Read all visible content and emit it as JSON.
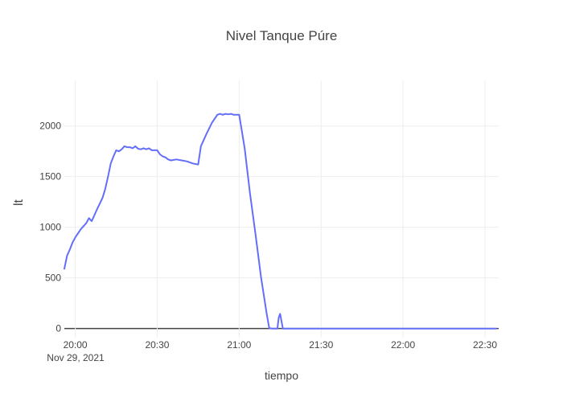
{
  "chart_data": {
    "type": "line",
    "title": "Nivel Tanque Púre",
    "xlabel": "tiempo",
    "ylabel": "lt",
    "x_date_label": "Nov 29, 2021",
    "x_tick_labels": [
      "20:00",
      "20:30",
      "21:00",
      "21:30",
      "22:00",
      "22:30"
    ],
    "y_tick_labels": [
      "0",
      "500",
      "1000",
      "1500",
      "2000"
    ],
    "y_ticks": [
      0,
      500,
      1000,
      1500,
      2000
    ],
    "xlim": [
      "2021-11-29 19:56",
      "2021-11-29 22:35"
    ],
    "ylim": [
      -90,
      2450
    ],
    "grid": true,
    "series_color": "#636efa",
    "series": [
      {
        "x": [
          "2021-11-29 19:56",
          "2021-11-29 19:57",
          "2021-11-29 19:58",
          "2021-11-29 19:59",
          "2021-11-29 20:00",
          "2021-11-29 20:02",
          "2021-11-29 20:04",
          "2021-11-29 20:05",
          "2021-11-29 20:06",
          "2021-11-29 20:08",
          "2021-11-29 20:10",
          "2021-11-29 20:11",
          "2021-11-29 20:12",
          "2021-11-29 20:13",
          "2021-11-29 20:14",
          "2021-11-29 20:15",
          "2021-11-29 20:16",
          "2021-11-29 20:17",
          "2021-11-29 20:18",
          "2021-11-29 20:19",
          "2021-11-29 20:20",
          "2021-11-29 20:21",
          "2021-11-29 20:22",
          "2021-11-29 20:23",
          "2021-11-29 20:24",
          "2021-11-29 20:25",
          "2021-11-29 20:26",
          "2021-11-29 20:27",
          "2021-11-29 20:28",
          "2021-11-29 20:29",
          "2021-11-29 20:30",
          "2021-11-29 20:31",
          "2021-11-29 20:32",
          "2021-11-29 20:33",
          "2021-11-29 20:34",
          "2021-11-29 20:35",
          "2021-11-29 20:37",
          "2021-11-29 20:39",
          "2021-11-29 20:41",
          "2021-11-29 20:43",
          "2021-11-29 20:45",
          "2021-11-29 20:46",
          "2021-11-29 20:48",
          "2021-11-29 20:50",
          "2021-11-29 20:52",
          "2021-11-29 20:53",
          "2021-11-29 20:54",
          "2021-11-29 20:55",
          "2021-11-29 20:56",
          "2021-11-29 20:57",
          "2021-11-29 20:58",
          "2021-11-29 20:59",
          "2021-11-29 21:00",
          "2021-11-29 21:02",
          "2021-11-29 21:04",
          "2021-11-29 21:06",
          "2021-11-29 21:08",
          "2021-11-29 21:10",
          "2021-11-29 21:11",
          "2021-11-29 21:12",
          "2021-11-29 21:13",
          "2021-11-29 21:14",
          "2021-11-29 21:14.5",
          "2021-11-29 21:15",
          "2021-11-29 21:16",
          "2021-11-29 21:20",
          "2021-11-29 21:40",
          "2021-11-29 22:00",
          "2021-11-29 22:20",
          "2021-11-29 22:34"
        ],
        "y": [
          590,
          720,
          780,
          850,
          900,
          980,
          1040,
          1090,
          1060,
          1180,
          1290,
          1380,
          1500,
          1630,
          1700,
          1760,
          1750,
          1770,
          1800,
          1790,
          1790,
          1780,
          1800,
          1775,
          1770,
          1780,
          1770,
          1780,
          1760,
          1760,
          1760,
          1720,
          1700,
          1690,
          1670,
          1660,
          1670,
          1660,
          1650,
          1630,
          1620,
          1800,
          1920,
          2030,
          2110,
          2120,
          2110,
          2120,
          2115,
          2120,
          2110,
          2110,
          2110,
          1780,
          1330,
          930,
          510,
          160,
          5,
          0,
          0,
          0,
          110,
          145,
          0,
          0,
          0,
          0,
          0,
          0
        ]
      }
    ]
  }
}
